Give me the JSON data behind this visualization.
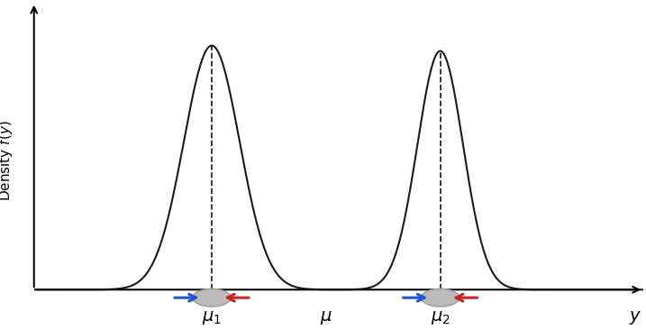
{
  "mu1": -2.0,
  "mu2": 2.5,
  "mu": 0.25,
  "sigma1": 0.55,
  "sigma2": 0.45,
  "weight1": 1.0,
  "weight2": 0.8,
  "xlim": [
    -5.5,
    6.5
  ],
  "ylim": [
    -0.09,
    1.0
  ],
  "curve_color": "#1a1a1a",
  "curve_lw": 1.5,
  "dashed_color": "#1a1a1a",
  "solid_color": "#1a1a1a",
  "arrow_blue": "#2255cc",
  "arrow_red": "#cc2222",
  "ellipse_color": "#bbbbbb",
  "ellipse_edge": "#999999",
  "mu1_label": "$\\mu_1$",
  "mu2_label": "$\\mu_2$",
  "mu_label": "$\\mu$",
  "y_label": "$y$",
  "ylabel": "Density $f(y)$",
  "label_fontsize": 14,
  "axis_label_fontsize": 11
}
